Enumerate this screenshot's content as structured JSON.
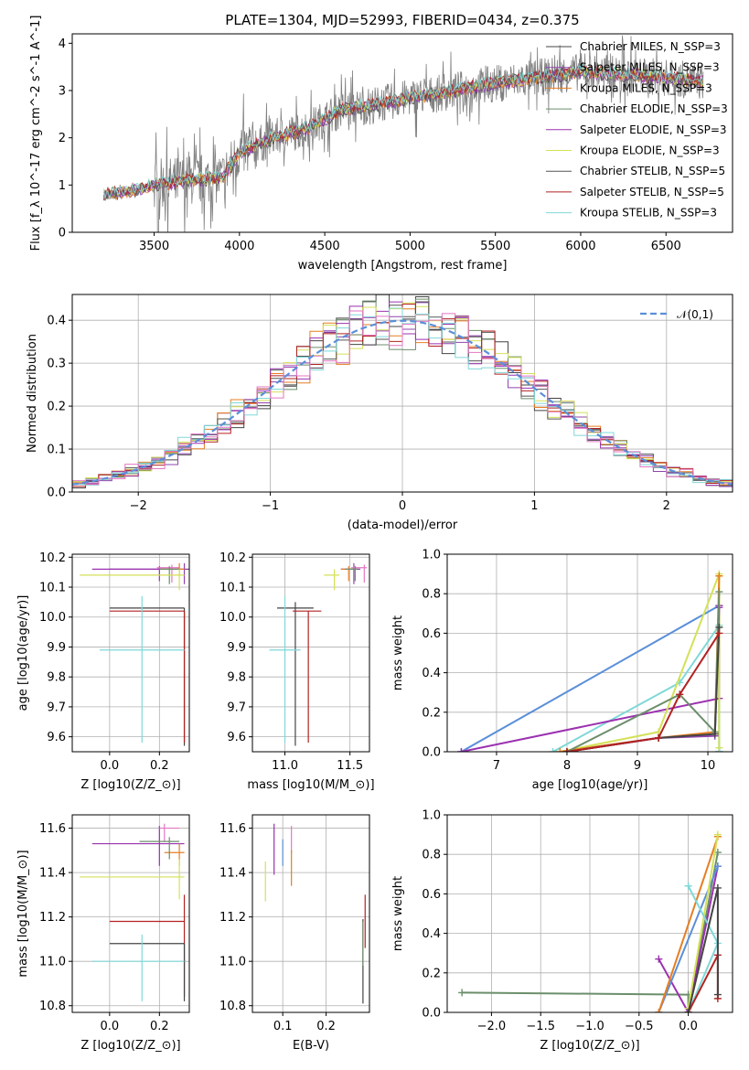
{
  "chart_data": [
    {
      "type": "line",
      "title": "PLATE=1304, MJD=52993, FIBERID=0434, z=0.375",
      "xlabel": "wavelength [Angstrom, rest frame]",
      "ylabel": "Flux [f_λ 10^-17 erg cm^-2 s^-1 A^-1]",
      "xlim": [
        3020,
        6890
      ],
      "ylim": [
        0,
        4.2
      ],
      "xticks": [
        "3500",
        "4000",
        "4500",
        "5000",
        "5500",
        "6000",
        "6500"
      ],
      "yticks": [
        "0",
        "1",
        "2",
        "3",
        "4"
      ],
      "legend": "right",
      "series": [
        {
          "name": "Chabrier MILES, N_SSP=3",
          "color": "#444444"
        },
        {
          "name": "Salpeter MILES, N_SSP=3",
          "color": "#8e44ad"
        },
        {
          "name": "Kroupa MILES, N_SSP=3",
          "color": "#e67e22"
        },
        {
          "name": "Chabrier ELODIE, N_SSP=3",
          "color": "#6b8e6b"
        },
        {
          "name": "Salpeter ELODIE, N_SSP=3",
          "color": "#9b30b0"
        },
        {
          "name": "Kroupa ELODIE, N_SSP=3",
          "color": "#d4e157"
        },
        {
          "name": "Chabrier STELIB, N_SSP=5",
          "color": "#555555"
        },
        {
          "name": "Salpeter STELIB, N_SSP=5",
          "color": "#b22222"
        },
        {
          "name": "Kroupa STELIB, N_SSP=3",
          "color": "#7fd8d8"
        }
      ],
      "continuum": {
        "x": [
          3200,
          3400,
          3500,
          3700,
          3900,
          4000,
          4200,
          4400,
          4600,
          4800,
          5000,
          5200,
          5400,
          5600,
          5800,
          6000,
          6200,
          6400,
          6700
        ],
        "y": [
          0.8,
          0.9,
          1.0,
          1.1,
          1.15,
          1.7,
          2.0,
          2.2,
          2.6,
          2.7,
          2.85,
          2.95,
          3.1,
          3.2,
          3.3,
          3.4,
          3.35,
          3.3,
          3.2
        ]
      },
      "data_color": "#808080"
    },
    {
      "type": "bar",
      "xlabel": "(data-model)/error",
      "ylabel": "Normed distribution",
      "xlim": [
        -2.5,
        2.5
      ],
      "ylim": [
        0,
        0.46
      ],
      "xticks": [
        "−2",
        "−1",
        "0",
        "1",
        "2"
      ],
      "yticks": [
        "0.0",
        "0.1",
        "0.2",
        "0.3",
        "0.4"
      ],
      "legend_label": "𝒩(0,1)",
      "legend": "top-right",
      "bin_width": 0.1,
      "gaussian": {
        "mu": 0,
        "sigma": 1,
        "color": "#5b8fd9"
      },
      "series_colors": [
        "#444444",
        "#8e44ad",
        "#e67e22",
        "#6b8e6b",
        "#9b30b0",
        "#d4e157",
        "#555555",
        "#b22222",
        "#7fd8d8",
        "#e377c2"
      ]
    },
    {
      "type": "scatter",
      "xlabel": "Z [log10(Z/Z_⊙)]",
      "ylabel": "age [log10(age/yr)]",
      "xlim": [
        -0.15,
        0.32
      ],
      "ylim": [
        9.55,
        10.21
      ],
      "xticks": [
        "0.0",
        "0.2"
      ],
      "yticks": [
        "9.6",
        "9.7",
        "9.8",
        "9.9",
        "10.0",
        "10.1",
        "10.2"
      ],
      "points": [
        {
          "x": 0.3,
          "y": 10.16,
          "xe": [
            0.3,
            0.3
          ],
          "ye": [
            0.05,
            0.02
          ],
          "color": "#8e44ad"
        },
        {
          "x": 0.2,
          "y": 10.16,
          "xe": [
            0.27,
            0.05
          ],
          "ye": [
            0.04,
            0.01
          ],
          "color": "#9b30b0"
        },
        {
          "x": 0.25,
          "y": 10.165,
          "xe": [
            0.06,
            0.03
          ],
          "ye": [
            0.05,
            0.01
          ],
          "color": "#e377c2"
        },
        {
          "x": 0.28,
          "y": 10.16,
          "xe": [
            0.08,
            0.02
          ],
          "ye": [
            0.02,
            0.02
          ],
          "color": "#e67e22"
        },
        {
          "x": 0.24,
          "y": 10.16,
          "xe": [
            0.04,
            0.04
          ],
          "ye": [
            0.05,
            0.01
          ],
          "color": "#6b8e6b"
        },
        {
          "x": 0.28,
          "y": 10.14,
          "xe": [
            0.4,
            0.02
          ],
          "ye": [
            0.05,
            0.02
          ],
          "color": "#d4e157"
        },
        {
          "x": 0.3,
          "y": 10.03,
          "xe": [
            0.3,
            0.0
          ],
          "ye": [
            0.46,
            0.0
          ],
          "color": "#444444"
        },
        {
          "x": 0.3,
          "y": 10.02,
          "xe": [
            0.3,
            0.0
          ],
          "ye": [
            0.44,
            0.0
          ],
          "color": "#b22222"
        },
        {
          "x": 0.13,
          "y": 9.89,
          "xe": [
            0.17,
            0.17
          ],
          "ye": [
            0.31,
            0.18
          ],
          "color": "#7fd8d8"
        }
      ]
    },
    {
      "type": "scatter",
      "xlabel": "mass [log10(M/M_⊙)]",
      "ylabel": "",
      "xlim": [
        10.75,
        11.65
      ],
      "ylim": [
        9.55,
        10.21
      ],
      "xticks": [
        "11.0",
        "11.5"
      ],
      "yticks": [
        "9.6",
        "9.7",
        "9.8",
        "9.9",
        "10.0",
        "10.1",
        "10.2"
      ],
      "points": [
        {
          "x": 11.53,
          "y": 10.16,
          "xe": [
            0.1,
            0.05
          ],
          "ye": [
            0.05,
            0.02
          ],
          "color": "#8e44ad"
        },
        {
          "x": 11.61,
          "y": 10.165,
          "xe": [
            0.1,
            0.02
          ],
          "ye": [
            0.05,
            0.01
          ],
          "color": "#e377c2"
        },
        {
          "x": 11.49,
          "y": 10.16,
          "xe": [
            0.06,
            0.04
          ],
          "ye": [
            0.04,
            0.01
          ],
          "color": "#e67e22"
        },
        {
          "x": 11.54,
          "y": 10.16,
          "xe": [
            0.08,
            0.02
          ],
          "ye": [
            0.04,
            0.01
          ],
          "color": "#6b8e6b"
        },
        {
          "x": 11.38,
          "y": 10.14,
          "xe": [
            0.08,
            0.04
          ],
          "ye": [
            0.05,
            0.02
          ],
          "color": "#d4e157"
        },
        {
          "x": 11.08,
          "y": 10.03,
          "xe": [
            0.14,
            0.14
          ],
          "ye": [
            0.46,
            0.02
          ],
          "color": "#444444"
        },
        {
          "x": 11.18,
          "y": 10.02,
          "xe": [
            0.12,
            0.1
          ],
          "ye": [
            0.44,
            0.0
          ],
          "color": "#b22222"
        },
        {
          "x": 11.0,
          "y": 9.89,
          "xe": [
            0.12,
            0.12
          ],
          "ye": [
            0.31,
            0.18
          ],
          "color": "#7fd8d8"
        }
      ]
    },
    {
      "type": "line",
      "xlabel": "age [log10(age/yr)]",
      "ylabel": "mass weight",
      "xlim": [
        6.3,
        10.35
      ],
      "ylim": [
        0,
        1.0
      ],
      "xticks": [
        "7",
        "8",
        "9",
        "10"
      ],
      "yticks": [
        "0.0",
        "0.2",
        "0.4",
        "0.6",
        "0.8",
        "1.0"
      ],
      "series": [
        {
          "color": "#5b8fd9",
          "x": [
            6.5,
            10.16,
            10.16
          ],
          "y": [
            0.0,
            0.74,
            0.0
          ]
        },
        {
          "color": "#7fd8d8",
          "x": [
            7.8,
            9.6,
            10.16,
            10.16
          ],
          "y": [
            0.0,
            0.35,
            0.64,
            0.0
          ]
        },
        {
          "color": "#9b30b0",
          "x": [
            6.5,
            10.16,
            10.16
          ],
          "y": [
            0.0,
            0.27,
            0.74
          ]
        },
        {
          "color": "#d4e157",
          "x": [
            7.9,
            9.3,
            10.16,
            10.16
          ],
          "y": [
            0.0,
            0.1,
            0.9,
            0.02
          ]
        },
        {
          "color": "#e67e22",
          "x": [
            7.9,
            9.3,
            10.1,
            10.16
          ],
          "y": [
            0.0,
            0.07,
            0.1,
            0.89
          ]
        },
        {
          "color": "#8e44ad",
          "x": [
            8.0,
            9.3,
            10.1,
            10.16
          ],
          "y": [
            0.0,
            0.07,
            0.08,
            0.73
          ]
        },
        {
          "color": "#6b8e6b",
          "x": [
            8.0,
            9.6,
            10.1,
            10.16
          ],
          "y": [
            0.0,
            0.29,
            0.1,
            0.81
          ]
        },
        {
          "color": "#444444",
          "x": [
            8.0,
            9.3,
            10.1,
            10.16
          ],
          "y": [
            0.0,
            0.07,
            0.09,
            0.63
          ]
        },
        {
          "color": "#b22222",
          "x": [
            8.0,
            9.3,
            9.6,
            10.16
          ],
          "y": [
            0.0,
            0.07,
            0.29,
            0.6
          ]
        }
      ]
    },
    {
      "type": "scatter",
      "xlabel": "Z [log10(Z/Z_⊙)]",
      "ylabel": "mass [log10(M/M_⊙)]",
      "xlim": [
        -0.15,
        0.32
      ],
      "ylim": [
        10.77,
        11.66
      ],
      "xticks": [
        "0.0",
        "0.2"
      ],
      "yticks": [
        "10.8",
        "11.0",
        "11.2",
        "11.4",
        "11.6"
      ],
      "points": [
        {
          "x": 0.2,
          "y": 11.53,
          "xe": [
            0.27,
            0.1
          ],
          "ye": [
            0.1,
            0.08
          ],
          "color": "#9b30b0"
        },
        {
          "x": 0.22,
          "y": 11.6,
          "xe": [
            0.02,
            0.06
          ],
          "ye": [
            0.06,
            0.02
          ],
          "color": "#e377c2"
        },
        {
          "x": 0.28,
          "y": 11.49,
          "xe": [
            0.06,
            0.02
          ],
          "ye": [
            0.06,
            0.04
          ],
          "color": "#e67e22"
        },
        {
          "x": 0.24,
          "y": 11.54,
          "xe": [
            0.12,
            0.04
          ],
          "ye": [
            0.08,
            0.02
          ],
          "color": "#6b8e6b"
        },
        {
          "x": 0.28,
          "y": 11.38,
          "xe": [
            0.4,
            0.02
          ],
          "ye": [
            0.1,
            0.08
          ],
          "color": "#d4e157"
        },
        {
          "x": 0.3,
          "y": 11.18,
          "xe": [
            0.3,
            0.0
          ],
          "ye": [
            0.34,
            0.12
          ],
          "color": "#b22222"
        },
        {
          "x": 0.3,
          "y": 11.08,
          "xe": [
            0.3,
            0.0
          ],
          "ye": [
            0.26,
            0.0
          ],
          "color": "#444444"
        },
        {
          "x": 0.13,
          "y": 11.0,
          "xe": [
            0.2,
            0.17
          ],
          "ye": [
            0.18,
            0.12
          ],
          "color": "#7fd8d8"
        }
      ]
    },
    {
      "type": "scatter",
      "xlabel": "E(B-V)",
      "ylabel": "",
      "xlim": [
        0.03,
        0.3
      ],
      "ylim": [
        10.77,
        11.66
      ],
      "xticks": [
        "0.1",
        "0.2"
      ],
      "yticks": [
        "10.8",
        "11.0",
        "11.2",
        "11.4",
        "11.6"
      ],
      "points": [
        {
          "x": 0.06,
          "y": 11.36,
          "ye": [
            0.09,
            0.09
          ],
          "color": "#d4e157"
        },
        {
          "x": 0.08,
          "y": 11.53,
          "ye": [
            0.14,
            0.09
          ],
          "color": "#9b30b0"
        },
        {
          "x": 0.1,
          "y": 11.49,
          "ye": [
            0.06,
            0.06
          ],
          "color": "#5b8fd9"
        },
        {
          "x": 0.12,
          "y": 11.55,
          "ye": [
            0.06,
            0.06
          ],
          "color": "#e377c2"
        },
        {
          "x": 0.12,
          "y": 11.42,
          "ye": [
            0.08,
            0.08
          ],
          "color": "#e67e22"
        },
        {
          "x": 0.29,
          "y": 11.18,
          "ye": [
            0.12,
            0.12
          ],
          "color": "#b22222"
        },
        {
          "x": 0.285,
          "y": 11.0,
          "ye": [
            0.19,
            0.19
          ],
          "color": "#444444"
        },
        {
          "x": 0.285,
          "y": 11.08,
          "ye": [
            0.1,
            0.1
          ],
          "color": "#6b8e6b"
        }
      ]
    },
    {
      "type": "line",
      "xlabel": "Z [log10(Z/Z_⊙)]",
      "ylabel": "mass weight",
      "xlim": [
        -2.45,
        0.45
      ],
      "ylim": [
        0,
        1.0
      ],
      "xticks": [
        "−2.0",
        "−1.5",
        "−1.0",
        "−0.5",
        "0.0"
      ],
      "yticks": [
        "0.0",
        "0.2",
        "0.4",
        "0.6",
        "0.8",
        "1.0"
      ],
      "series": [
        {
          "color": "#6b8e6b",
          "x": [
            -2.3,
            0.0,
            0.0,
            0.3
          ],
          "y": [
            0.1,
            0.09,
            0.0,
            0.81
          ]
        },
        {
          "color": "#9b30b0",
          "x": [
            -0.3,
            0.0,
            0.3
          ],
          "y": [
            0.27,
            0.0,
            0.74
          ]
        },
        {
          "color": "#5b8fd9",
          "x": [
            -0.3,
            0.3
          ],
          "y": [
            0.0,
            0.74
          ]
        },
        {
          "color": "#e67e22",
          "x": [
            -0.3,
            0.3
          ],
          "y": [
            0.0,
            0.89
          ]
        },
        {
          "color": "#d4e157",
          "x": [
            0.0,
            0.3
          ],
          "y": [
            0.02,
            0.9
          ]
        },
        {
          "color": "#7fd8d8",
          "x": [
            0.0,
            0.3,
            0.0
          ],
          "y": [
            0.64,
            0.35,
            0.0
          ]
        },
        {
          "color": "#b22222",
          "x": [
            0.0,
            0.3,
            0.3
          ],
          "y": [
            0.0,
            0.29,
            0.07
          ]
        },
        {
          "color": "#444444",
          "x": [
            0.0,
            0.3,
            0.3
          ],
          "y": [
            0.0,
            0.63,
            0.09
          ]
        }
      ]
    }
  ]
}
